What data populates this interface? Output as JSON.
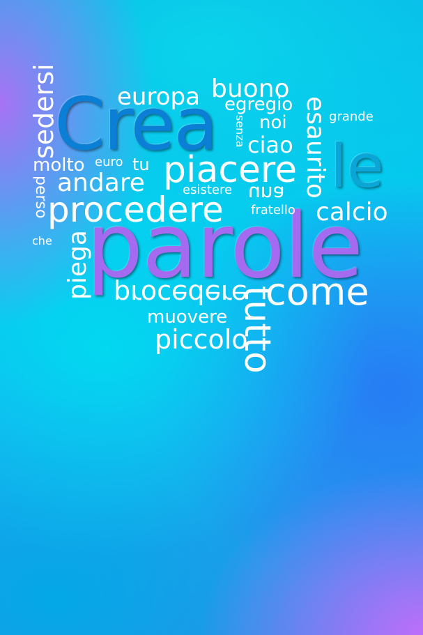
{
  "wordcloud": {
    "crea": "Crea",
    "parole": "parole",
    "le": "le",
    "europa": "europa",
    "buono": "buono",
    "egregio": "egregio",
    "noi": "noi",
    "grande": "grande",
    "senza": "senza",
    "ciao": "ciao",
    "esaurito": "esaurito",
    "sedersi": "sedersi",
    "molto": "molto",
    "euro": "euro",
    "tu": "tu",
    "piacere": "piacere",
    "andare": "andare",
    "perso": "perso",
    "esistere": "esistere",
    "una": "una",
    "procedere": "procedere",
    "fratello": "fratello",
    "calcio": "calcio",
    "che": "che",
    "piega": "piega",
    "procedere_flipped": "procedere",
    "come": "come",
    "tutto": "tutto",
    "muovere": "muovere",
    "piccolo": "piccolo"
  },
  "colors": {
    "crea": "#0b7fd6",
    "parole": "#a46af0",
    "le": "#0aa6d8",
    "text": "#ffffff"
  }
}
